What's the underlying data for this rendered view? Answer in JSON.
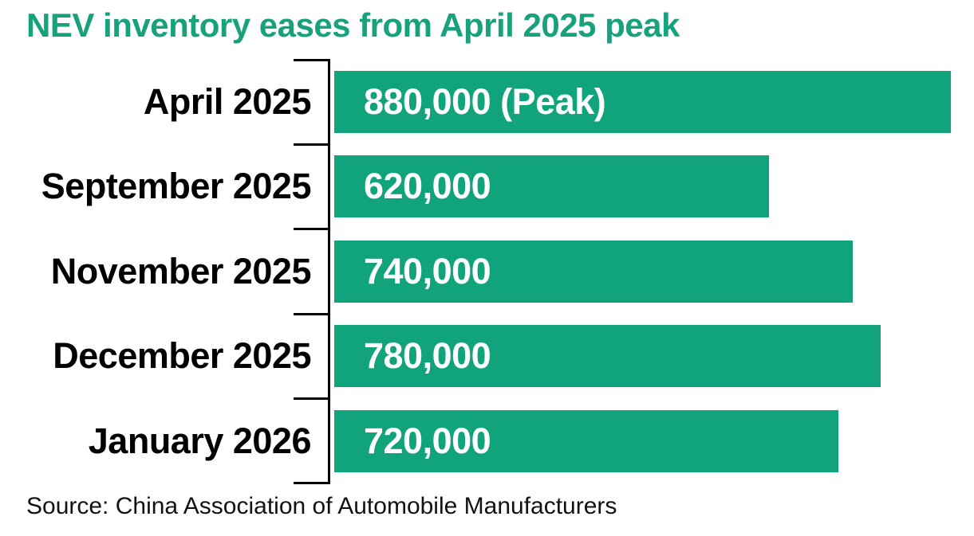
{
  "chart_data": {
    "type": "bar",
    "orientation": "horizontal",
    "title": "NEV inventory eases from April 2025 peak",
    "categories": [
      "April 2025",
      "September 2025",
      "November 2025",
      "December 2025",
      "January 2026"
    ],
    "values": [
      880000,
      620000,
      740000,
      780000,
      720000
    ],
    "bar_labels": [
      "880,000 (Peak)",
      "620,000",
      "740,000",
      "780,000",
      "720,000"
    ],
    "source": "Source: China Association of Automobile Manufacturers",
    "xlim": [
      0,
      880000
    ],
    "grid": false,
    "legend": false,
    "colors": {
      "title": "#17a27d",
      "bar": "#11a37c",
      "category_label": "#000000",
      "value_label": "#ffffff",
      "axis": "#000000",
      "background": "#ffffff"
    }
  }
}
